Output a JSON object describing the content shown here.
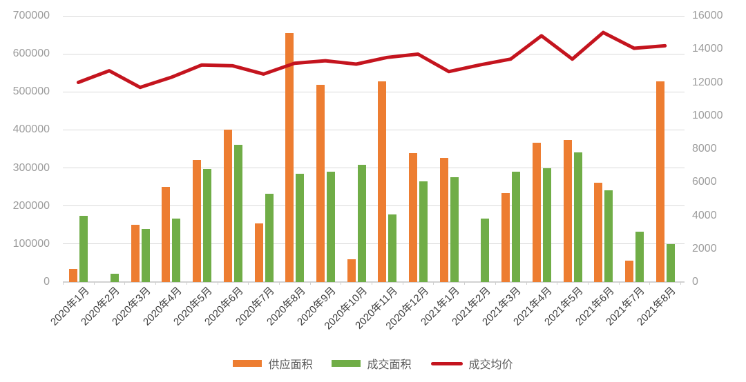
{
  "chart_data": {
    "type": "bar+line combo, dual y-axis",
    "categories": [
      "2020年1月",
      "2020年2月",
      "2020年3月",
      "2020年4月",
      "2020年5月",
      "2020年6月",
      "2020年7月",
      "2020年8月",
      "2020年9月",
      "2020年10月",
      "2020年11月",
      "2020年12月",
      "2021年1月",
      "2021年2月",
      "2021年3月",
      "2021年4月",
      "2021年5月",
      "2021年6月",
      "2021年7月",
      "2021年8月"
    ],
    "series": [
      {
        "name": "供应面积",
        "type": "bar",
        "axis": "left",
        "color": "#ED7D31",
        "values": [
          35000,
          0,
          151000,
          251000,
          321000,
          401000,
          155000,
          655000,
          518000,
          60000,
          527000,
          340000,
          326000,
          0,
          234000,
          367000,
          373000,
          262000,
          57000,
          528000
        ]
      },
      {
        "name": "成交面积",
        "type": "bar",
        "axis": "left",
        "color": "#70AD47",
        "values": [
          174000,
          21000,
          139000,
          167000,
          297000,
          361000,
          233000,
          285000,
          290000,
          309000,
          177000,
          265000,
          276000,
          167000,
          290000,
          300000,
          341000,
          242000,
          132000,
          100000
        ]
      },
      {
        "name": "成交均价",
        "type": "line",
        "axis": "right",
        "color": "#C4141E",
        "values": [
          12000,
          12700,
          11700,
          12300,
          13050,
          13000,
          12500,
          13150,
          13300,
          13100,
          13500,
          13700,
          12650,
          13050,
          13400,
          14800,
          13400,
          15000,
          14050,
          14200
        ]
      }
    ],
    "left_axis": {
      "min": 0,
      "max": 700000,
      "step": 100000,
      "tick_labels": [
        "0",
        "100000",
        "200000",
        "300000",
        "400000",
        "500000",
        "600000",
        "700000"
      ]
    },
    "right_axis": {
      "min": 0,
      "max": 16000,
      "step": 2000,
      "tick_labels": [
        "0",
        "2000",
        "4000",
        "6000",
        "8000",
        "10000",
        "12000",
        "14000",
        "16000"
      ]
    },
    "grid": true,
    "legend_position": "bottom",
    "title": ""
  },
  "colors": {
    "supply_bar": "#ED7D31",
    "sold_bar": "#70AD47",
    "price_line": "#C4141E",
    "gridline": "#D9D9D9",
    "axis_number_text": "#9C9C9C",
    "category_text": "#3D3D3D",
    "legend_text": "#595959",
    "background": "#FFFFFF"
  }
}
